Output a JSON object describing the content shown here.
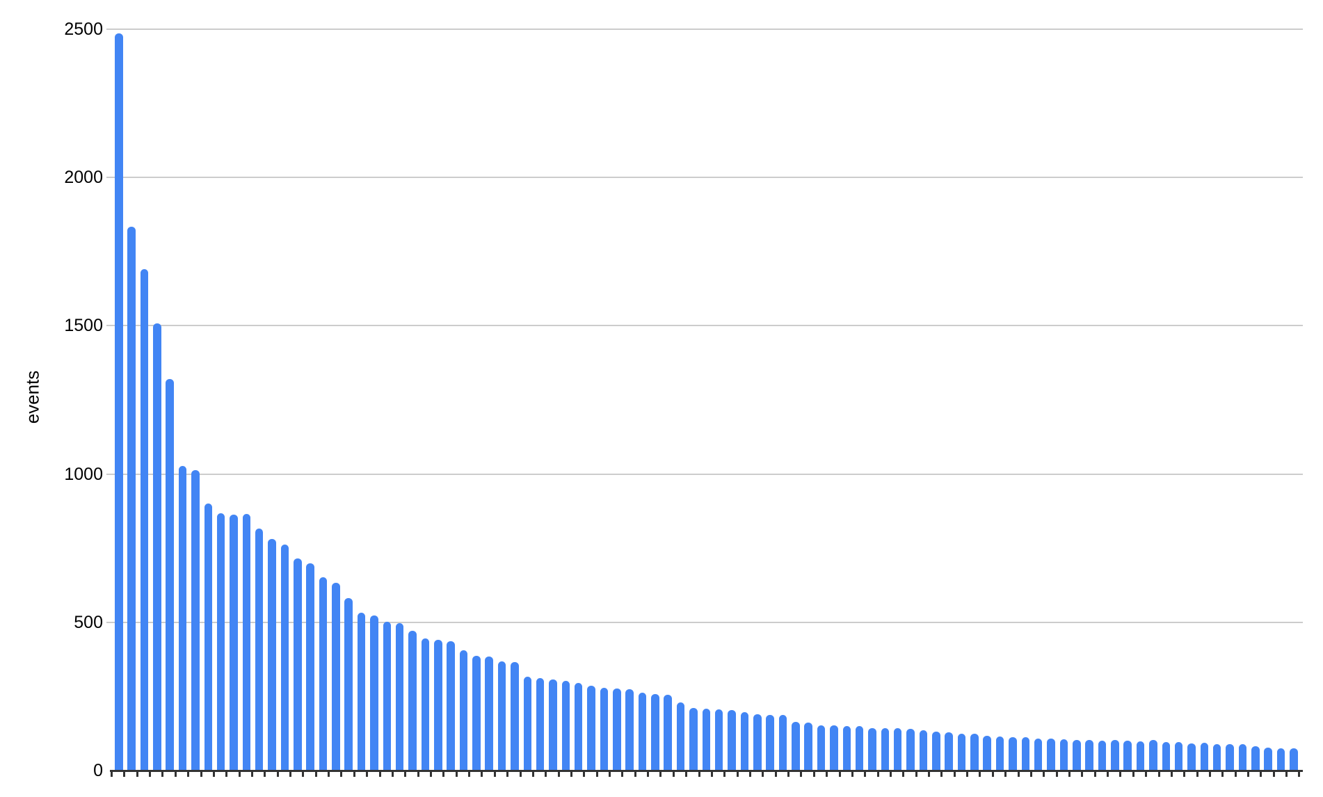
{
  "page": {
    "background": "#ffffff"
  },
  "chart_data": {
    "type": "bar",
    "title": "",
    "xlabel": "",
    "ylabel": "events",
    "ylim": [
      0,
      2500
    ],
    "y_ticks": [
      0,
      500,
      1000,
      1500,
      2000,
      2500
    ],
    "grid": true,
    "legend_position": "none",
    "x_tick_labels_visible": false,
    "bar_color": "#4285f4",
    "gridline_color": "#cccccc",
    "axis_line_color": "#333333",
    "text_color": "#000000",
    "values": [
      2485,
      1833,
      1692,
      1507,
      1320,
      1028,
      1012,
      900,
      868,
      862,
      866,
      816,
      781,
      762,
      715,
      698,
      652,
      633,
      581,
      532,
      523,
      501,
      497,
      472,
      446,
      441,
      437,
      406,
      386,
      384,
      369,
      366,
      317,
      312,
      308,
      303,
      296,
      286,
      280,
      277,
      275,
      262,
      258,
      255,
      230,
      211,
      209,
      206,
      204,
      197,
      190,
      188,
      187,
      164,
      163,
      153,
      152,
      150,
      149,
      143,
      143,
      143,
      141,
      136,
      131,
      129,
      124,
      124,
      117,
      115,
      113,
      113,
      108,
      108,
      105,
      103,
      103,
      101,
      103,
      101,
      98,
      103,
      96,
      97,
      91,
      93,
      88,
      88,
      88,
      83,
      78,
      76,
      74
    ]
  }
}
